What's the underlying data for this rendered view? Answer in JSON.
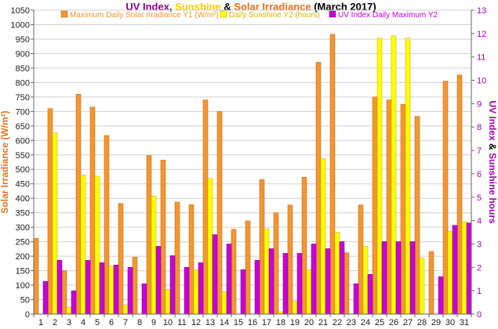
{
  "chart_data": {
    "type": "bar",
    "title_parts": [
      {
        "text": "UV Index",
        "color": "#8b008b"
      },
      {
        "text": ", ",
        "color": "#000000"
      },
      {
        "text": "Sunshine",
        "color": "#ffcc00"
      },
      {
        "text": " & ",
        "color": "#000000"
      },
      {
        "text": "Solar Irradiance",
        "color": "#e8721c"
      },
      {
        "text": " (March 2017)",
        "color": "#000000"
      }
    ],
    "ylabel_left": "Solar Irradiance (W/m²)",
    "ylabel_right_parts": [
      {
        "text": "UV Index",
        "color": "#a000b0"
      },
      {
        "text": " & ",
        "color": "#000000"
      },
      {
        "text": "Sunshine hours",
        "color": "#a000b0"
      }
    ],
    "ylim_left": [
      0,
      1050
    ],
    "ylim_right": [
      0,
      13
    ],
    "yticks_left": [
      0,
      50,
      100,
      150,
      200,
      250,
      300,
      350,
      400,
      450,
      500,
      550,
      600,
      650,
      700,
      750,
      800,
      850,
      900,
      950,
      1000,
      1050
    ],
    "yticks_right": [
      0,
      1,
      2,
      3,
      4,
      5,
      6,
      7,
      8,
      9,
      10,
      11,
      12,
      13
    ],
    "categories": [
      "1",
      "2",
      "3",
      "4",
      "5",
      "6",
      "7",
      "8",
      "9",
      "10",
      "11",
      "12",
      "13",
      "14",
      "15",
      "16",
      "17",
      "18",
      "19",
      "20",
      "21",
      "22",
      "23",
      "24",
      "25",
      "26",
      "27",
      "28",
      "29",
      "30",
      "31"
    ],
    "series": [
      {
        "name": "Maximum Daily Solar Irradiance Y1 (W/m²)",
        "axis": "left",
        "color": "#f5962e",
        "edge": "#b85d10",
        "values": [
          262,
          710,
          150,
          760,
          715,
          617,
          382,
          197,
          548,
          532,
          387,
          378,
          740,
          700,
          293,
          322,
          465,
          350,
          377,
          473,
          870,
          967,
          212,
          377,
          750,
          740,
          725,
          683,
          216,
          805,
          826
        ]
      },
      {
        "name": "Daily Sunshine Y2 (hours)",
        "axis": "right",
        "color": "#ffff00",
        "edge": "#b8a800",
        "values": [
          0,
          7.75,
          0.3,
          5.95,
          5.9,
          2.05,
          0.4,
          0.0,
          5.05,
          1.05,
          0.0,
          1.9,
          5.8,
          0.95,
          0.0,
          0.0,
          3.65,
          0.1,
          0.55,
          1.9,
          6.65,
          3.5,
          0.0,
          2.9,
          11.8,
          11.9,
          11.8,
          2.4,
          0.0,
          3.55,
          3.95
        ]
      },
      {
        "name": "UV Index Daily Maximum Y2",
        "axis": "right",
        "color": "#c800dc",
        "edge": "#6e0080",
        "values": [
          1.4,
          2.3,
          1.0,
          2.3,
          2.2,
          2.1,
          2.0,
          1.3,
          2.9,
          2.5,
          2.0,
          2.2,
          3.4,
          3.0,
          1.9,
          2.3,
          2.8,
          2.6,
          2.6,
          3.0,
          2.8,
          3.1,
          1.3,
          1.7,
          3.1,
          3.1,
          3.1,
          0.0,
          1.6,
          3.8,
          3.9
        ]
      }
    ],
    "legend_position": "top-center"
  }
}
